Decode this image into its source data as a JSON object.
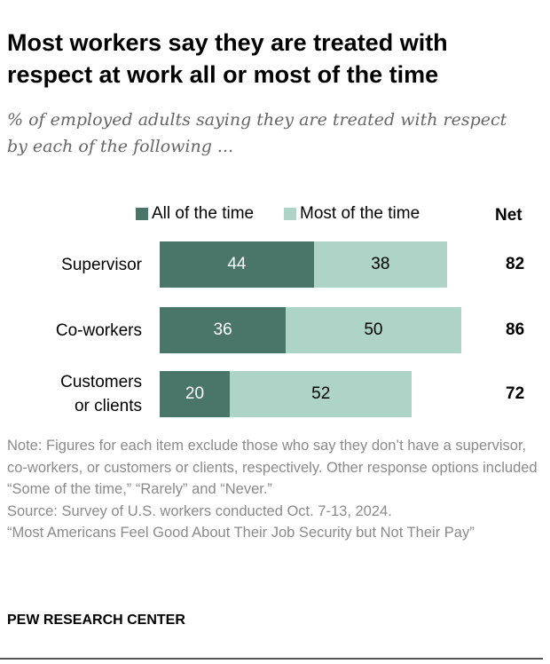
{
  "title": "Most workers say they are treated with respect at work all or most of the time",
  "subtitle": "% of employed adults saying they are treated with respect by each of the following ...",
  "colors": {
    "all": "#4a7569",
    "most": "#aed4c8"
  },
  "chart_data": {
    "type": "bar",
    "stacked": true,
    "orientation": "horizontal",
    "categories": [
      "Supervisor",
      "Co-workers",
      "Customers or clients"
    ],
    "category_lines": [
      [
        "Supervisor"
      ],
      [
        "Co-workers"
      ],
      [
        "Customers",
        "or clients"
      ]
    ],
    "series": [
      {
        "name": "All of the time",
        "values": [
          44,
          36,
          20
        ]
      },
      {
        "name": "Most of the time",
        "values": [
          38,
          50,
          52
        ]
      }
    ],
    "net_label": "Net",
    "net": [
      82,
      86,
      72
    ],
    "legend": "top"
  },
  "note": "Note: Figures for each item exclude those who say they don’t have a supervisor, co-workers, or customers or clients, respectively. Other response options included “Some of the time,” “Rarely” and “Never.”",
  "source": "Source: Survey of U.S. workers conducted Oct. 7-13, 2024.",
  "report": "“Most Americans Feel Good About Their Job Security but Not Their Pay”",
  "brand": "PEW RESEARCH CENTER"
}
